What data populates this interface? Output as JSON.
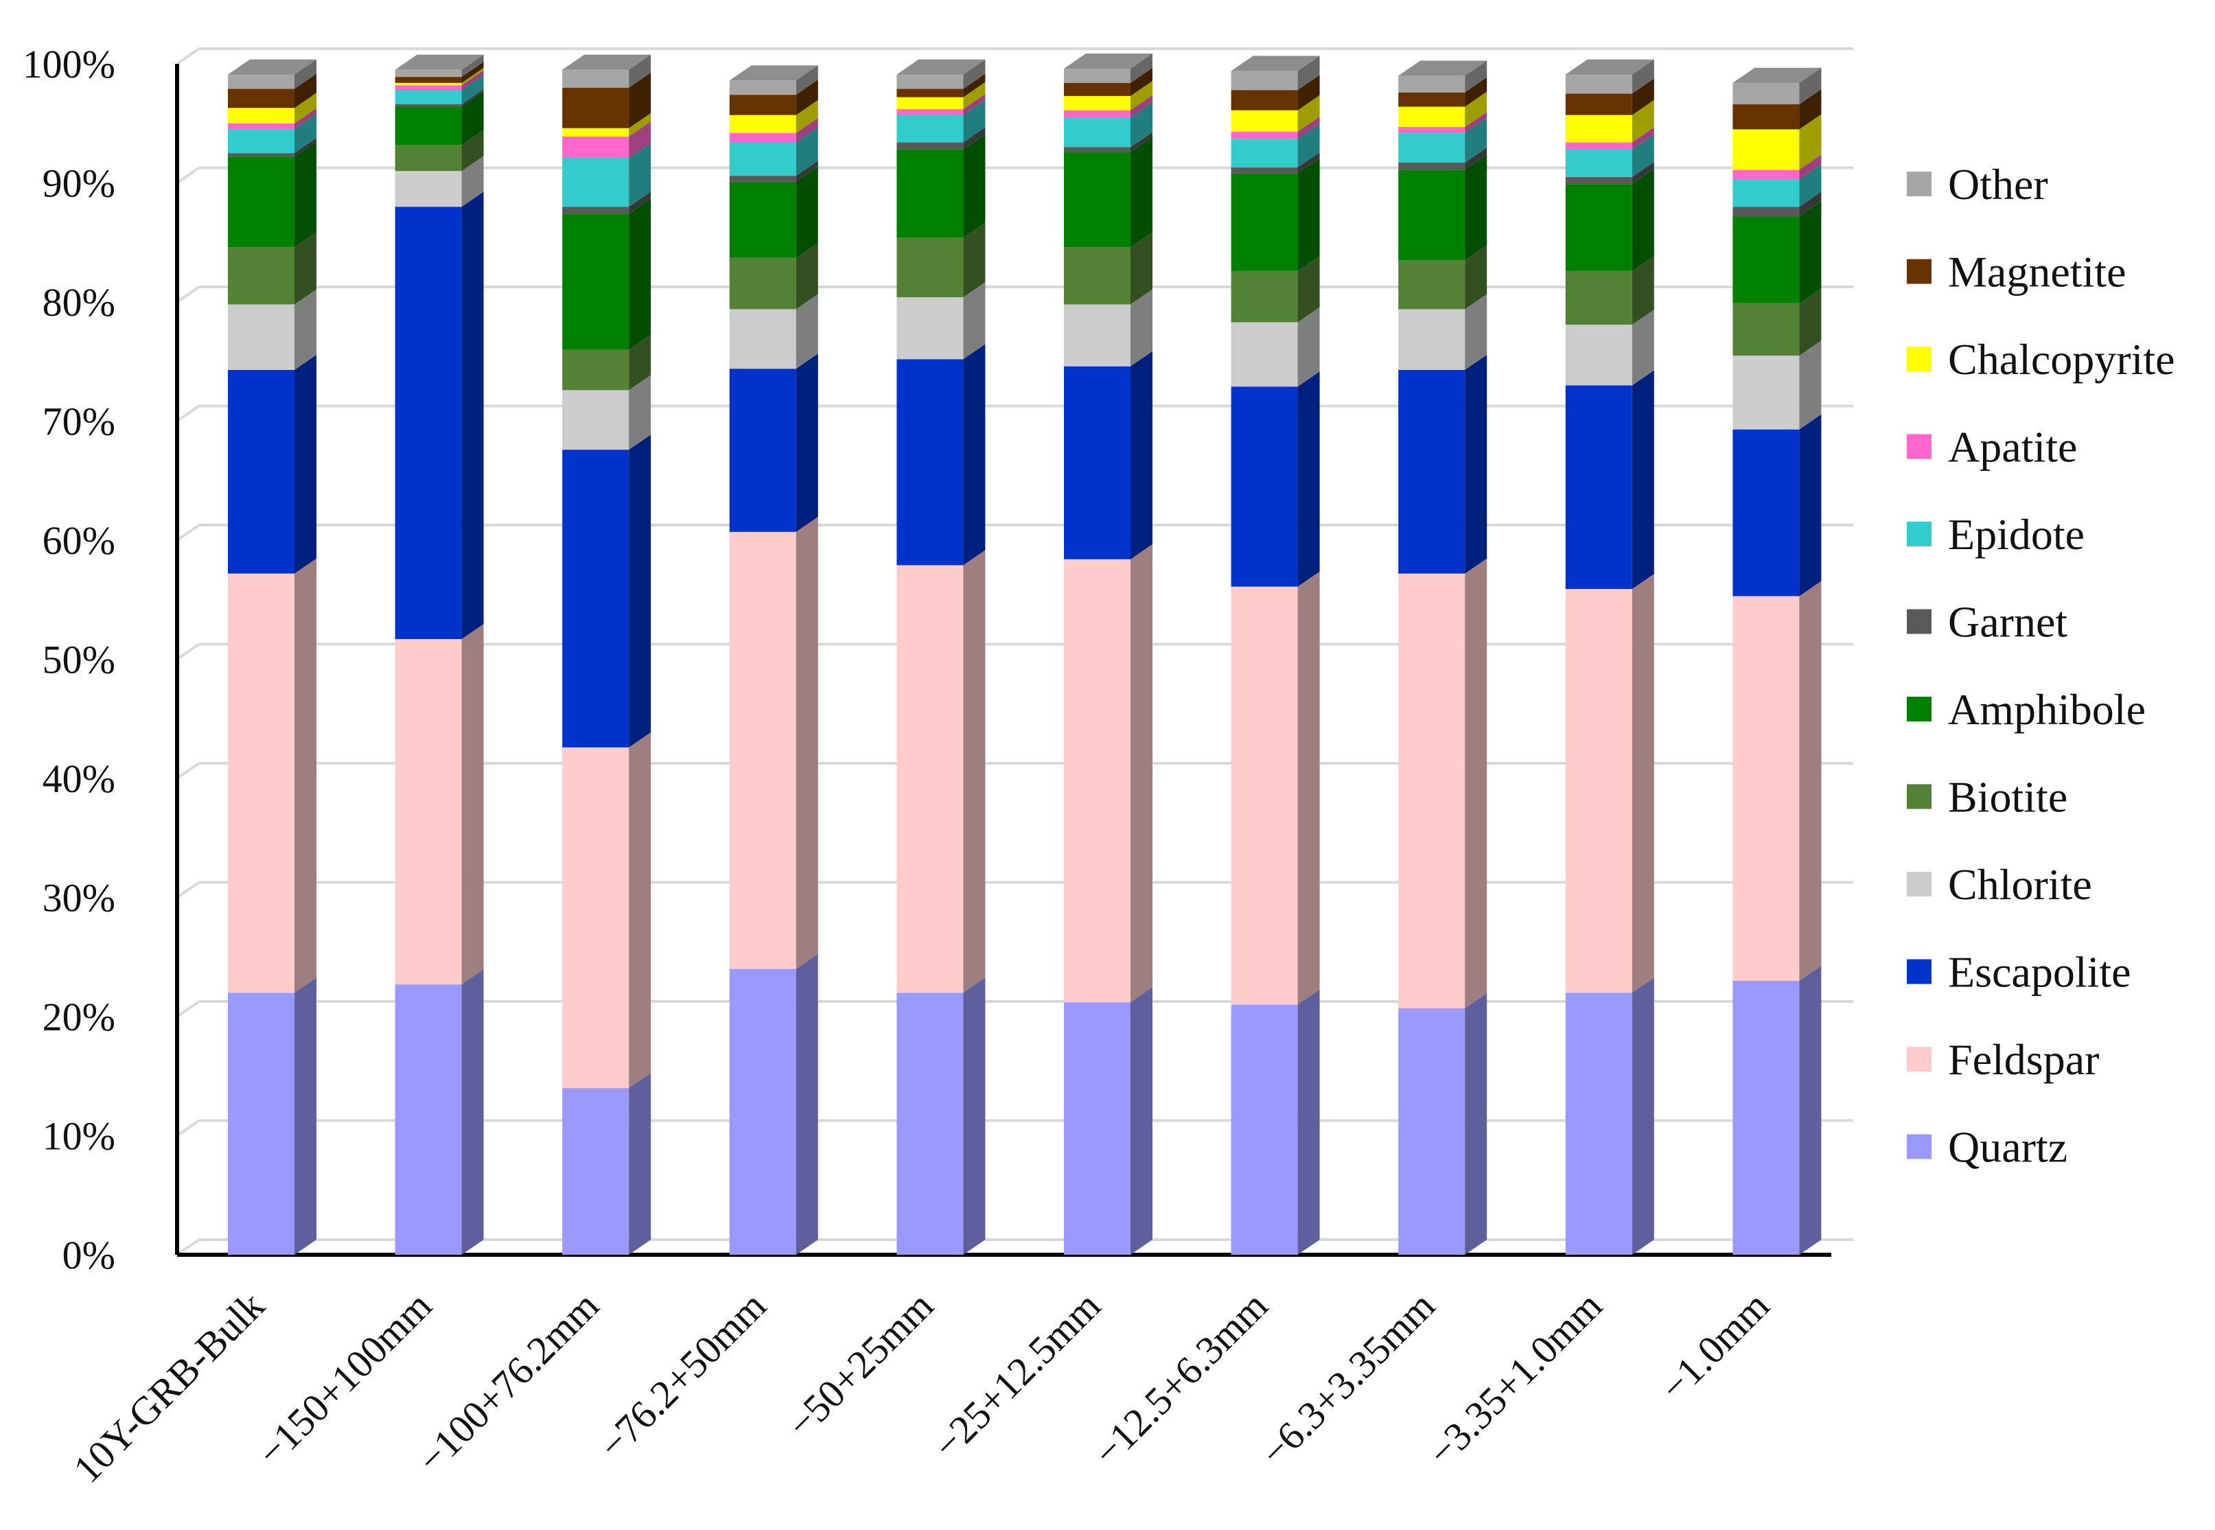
{
  "chart_data": {
    "type": "bar",
    "stacked": true,
    "percent": true,
    "three_d": true,
    "title": "",
    "xlabel": "",
    "ylabel": "",
    "ylim": [
      0,
      100
    ],
    "yticks": [
      0,
      10,
      20,
      30,
      40,
      50,
      60,
      70,
      80,
      90,
      100
    ],
    "ytick_labels": [
      "0%",
      "10%",
      "20%",
      "30%",
      "40%",
      "50%",
      "60%",
      "70%",
      "80%",
      "90%",
      "100%"
    ],
    "grid": true,
    "legend_position": "right",
    "categories": [
      "10Y-GRB-Bulk",
      "−150+100mm",
      "−100+76.2mm",
      "−76.2+50mm",
      "−50+25mm",
      "−25+12.5mm",
      "−12.5+6.3mm",
      "−6.3+3.35mm",
      "−3.35+1.0mm",
      "−1.0mm"
    ],
    "series": [
      {
        "name": "Quartz",
        "color": "#9999FF",
        "values": [
          22.0,
          22.7,
          14.0,
          24.0,
          22.0,
          21.2,
          21.0,
          20.7,
          22.0,
          23.0
        ]
      },
      {
        "name": "Feldspar",
        "color": "#FFCCCC",
        "values": [
          35.2,
          29.0,
          28.6,
          36.7,
          35.9,
          37.2,
          35.1,
          36.5,
          33.9,
          32.3
        ]
      },
      {
        "name": "Escapolite",
        "color": "#0033CC",
        "values": [
          17.1,
          36.3,
          25.0,
          13.7,
          17.3,
          16.2,
          16.8,
          17.1,
          17.1,
          14.0
        ]
      },
      {
        "name": "Chlorite",
        "color": "#CCCCCC",
        "values": [
          5.5,
          3.0,
          5.0,
          5.0,
          5.2,
          5.2,
          5.4,
          5.1,
          5.1,
          6.2
        ]
      },
      {
        "name": "Biotite",
        "color": "#538135",
        "values": [
          4.8,
          2.2,
          3.4,
          4.3,
          5.0,
          4.8,
          4.3,
          4.1,
          4.5,
          4.4
        ]
      },
      {
        "name": "Amphibole",
        "color": "#008000",
        "values": [
          7.6,
          3.2,
          11.4,
          6.4,
          7.4,
          8.0,
          8.2,
          7.6,
          7.3,
          7.3
        ]
      },
      {
        "name": "Garnet",
        "color": "#595959",
        "values": [
          0.3,
          0.2,
          0.6,
          0.5,
          0.6,
          0.4,
          0.5,
          0.6,
          0.6,
          0.8
        ]
      },
      {
        "name": "Epidote",
        "color": "#33CCCC",
        "values": [
          2.0,
          1.2,
          4.1,
          2.8,
          2.3,
          2.5,
          2.4,
          2.5,
          2.3,
          2.3
        ]
      },
      {
        "name": "Apatite",
        "color": "#FF66CC",
        "values": [
          0.5,
          0.4,
          1.8,
          0.8,
          0.5,
          0.6,
          0.6,
          0.5,
          0.6,
          0.8
        ]
      },
      {
        "name": "Chalcopyrite",
        "color": "#FFFF00",
        "values": [
          1.3,
          0.2,
          0.7,
          1.5,
          1.0,
          1.2,
          1.8,
          1.7,
          2.3,
          3.4
        ]
      },
      {
        "name": "Magnetite",
        "color": "#663300",
        "values": [
          1.6,
          0.5,
          3.4,
          1.7,
          0.7,
          1.1,
          1.7,
          1.2,
          1.8,
          2.1
        ]
      },
      {
        "name": "Other",
        "color": "#A6A6A6",
        "values": [
          1.2,
          0.6,
          1.5,
          1.2,
          1.2,
          1.2,
          1.6,
          1.4,
          1.6,
          1.8
        ]
      }
    ]
  }
}
